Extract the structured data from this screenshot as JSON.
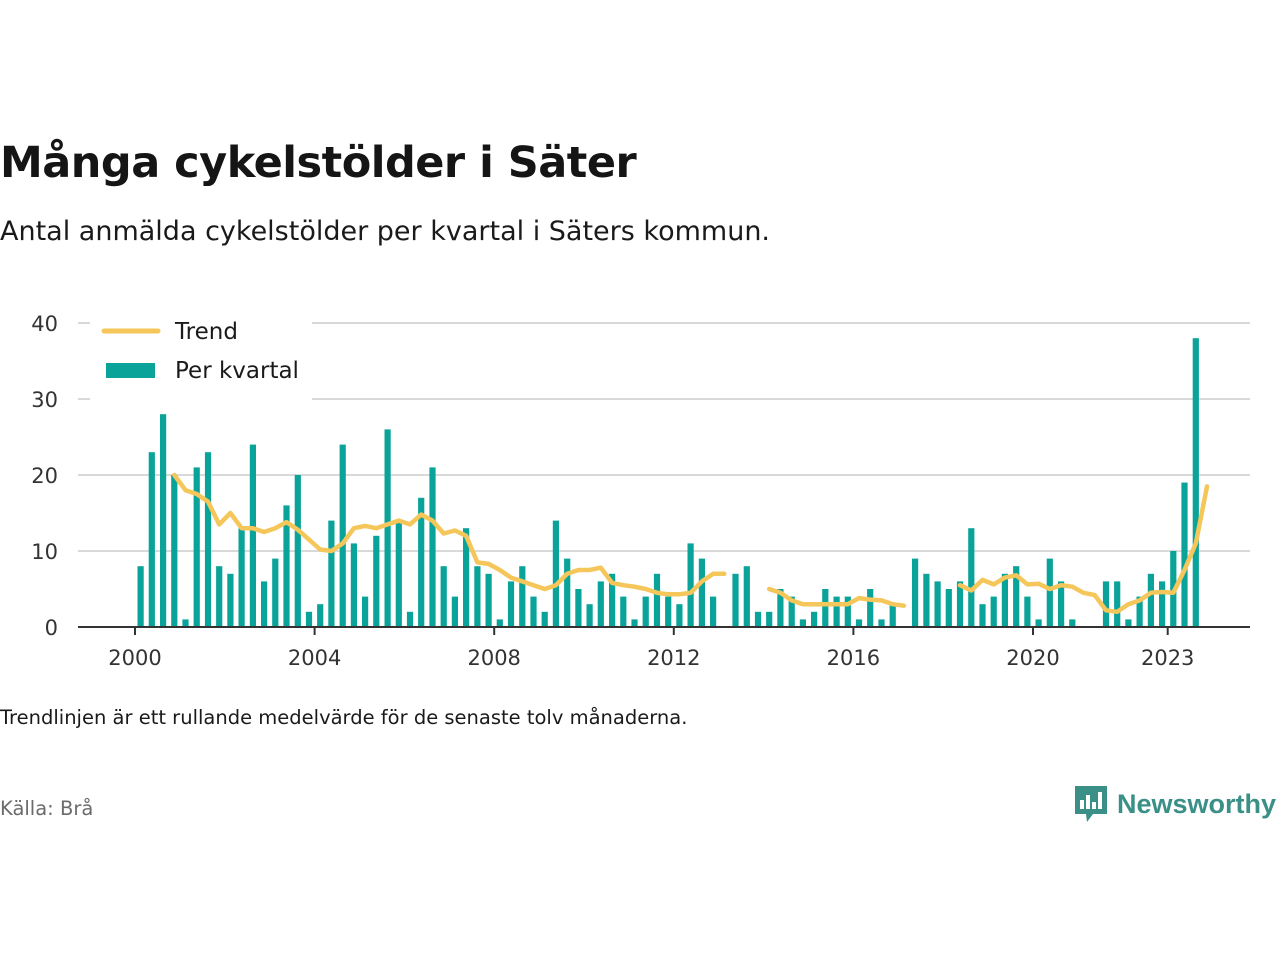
{
  "title": "Många cykelstölder i Säter",
  "subtitle": "Antal anmälda cykelstölder per kvartal i Säters kommun.",
  "note": "Trendlinjen är ett rullande medelvärde för de senaste tolv månaderna.",
  "source": "Källa: Brå",
  "brand": "Newsworthy",
  "colors": {
    "bar": "#0aa39a",
    "trend": "#f5c65a",
    "grid": "#d9d9d9",
    "axis": "#333333",
    "brand": "#3a8f86"
  },
  "chart_data": {
    "type": "bar",
    "title": "Många cykelstölder i Säter",
    "subtitle": "Antal anmälda cykelstölder per kvartal i Säters kommun.",
    "xlabel": "",
    "ylabel": "",
    "ylim": [
      0,
      40
    ],
    "yticks": [
      0,
      10,
      20,
      30,
      40
    ],
    "xticks": [
      2000,
      2004,
      2008,
      2012,
      2016,
      2020,
      2023
    ],
    "grid": true,
    "legend": {
      "position": "top-left",
      "entries": [
        "Trend",
        "Per kvartal"
      ]
    },
    "categories": [
      "2000 Q1",
      "2000 Q2",
      "2000 Q3",
      "2000 Q4",
      "2001 Q1",
      "2001 Q2",
      "2001 Q3",
      "2001 Q4",
      "2002 Q1",
      "2002 Q2",
      "2002 Q3",
      "2002 Q4",
      "2003 Q1",
      "2003 Q2",
      "2003 Q3",
      "2003 Q4",
      "2004 Q1",
      "2004 Q2",
      "2004 Q3",
      "2004 Q4",
      "2005 Q1",
      "2005 Q2",
      "2005 Q3",
      "2005 Q4",
      "2006 Q1",
      "2006 Q2",
      "2006 Q3",
      "2006 Q4",
      "2007 Q1",
      "2007 Q2",
      "2007 Q3",
      "2007 Q4",
      "2008 Q1",
      "2008 Q2",
      "2008 Q3",
      "2008 Q4",
      "2009 Q1",
      "2009 Q2",
      "2009 Q3",
      "2009 Q4",
      "2010 Q1",
      "2010 Q2",
      "2010 Q3",
      "2010 Q4",
      "2011 Q1",
      "2011 Q2",
      "2011 Q3",
      "2011 Q4",
      "2012 Q1",
      "2012 Q2",
      "2012 Q3",
      "2012 Q4",
      "2013 Q1",
      "2013 Q2",
      "2013 Q3",
      "2013 Q4",
      "2014 Q1",
      "2014 Q2",
      "2014 Q3",
      "2014 Q4",
      "2015 Q1",
      "2015 Q2",
      "2015 Q3",
      "2015 Q4",
      "2016 Q1",
      "2016 Q2",
      "2016 Q3",
      "2016 Q4",
      "2017 Q1",
      "2017 Q2",
      "2017 Q3",
      "2017 Q4",
      "2018 Q1",
      "2018 Q2",
      "2018 Q3",
      "2018 Q4",
      "2019 Q1",
      "2019 Q2",
      "2019 Q3",
      "2019 Q4",
      "2020 Q1",
      "2020 Q2",
      "2020 Q3",
      "2020 Q4",
      "2021 Q1",
      "2021 Q2",
      "2021 Q3",
      "2021 Q4",
      "2022 Q1",
      "2022 Q2",
      "2022 Q3",
      "2022 Q4",
      "2023 Q1",
      "2023 Q2",
      "2023 Q3",
      "2023 Q4"
    ],
    "series": [
      {
        "name": "Per kvartal",
        "kind": "bar",
        "values": [
          8,
          23,
          28,
          20,
          1,
          21,
          23,
          8,
          7,
          13,
          24,
          6,
          9,
          16,
          20,
          2,
          3,
          14,
          24,
          11,
          4,
          12,
          26,
          14,
          2,
          17,
          21,
          8,
          4,
          13,
          8,
          7,
          1,
          6,
          8,
          4,
          2,
          14,
          9,
          5,
          3,
          6,
          7,
          4,
          1,
          4,
          7,
          4,
          3,
          11,
          9,
          4,
          0,
          7,
          8,
          2,
          2,
          5,
          4,
          1,
          2,
          5,
          4,
          4,
          1,
          5,
          1,
          3,
          0,
          9,
          7,
          6,
          5,
          6,
          13,
          3,
          4,
          7,
          8,
          4,
          1,
          9,
          6,
          1,
          0,
          0,
          6,
          6,
          1,
          4,
          7,
          6,
          10,
          19,
          38,
          0
        ]
      },
      {
        "name": "Trend",
        "kind": "line",
        "values": [
          null,
          null,
          null,
          20,
          18,
          17.5,
          16.5,
          13.5,
          15,
          13,
          13,
          12.5,
          13,
          13.8,
          12.8,
          11.5,
          10.2,
          10,
          11,
          13,
          13.3,
          13,
          13.5,
          14,
          13.5,
          14.8,
          14,
          12.3,
          12.7,
          12,
          8.5,
          8.3,
          7.5,
          6.5,
          6,
          5.5,
          5,
          5.5,
          7,
          7.5,
          7.5,
          7.8,
          5.8,
          5.5,
          5.3,
          5,
          4.5,
          4.3,
          4.3,
          4.5,
          6,
          7,
          7,
          null,
          null,
          null,
          5,
          4.5,
          3.5,
          3,
          3,
          3,
          3,
          3,
          3.8,
          3.6,
          3.5,
          3,
          2.8,
          null,
          null,
          null,
          null,
          5.5,
          4.8,
          6.2,
          5.6,
          6.5,
          6.8,
          5.6,
          5.7,
          5,
          5.5,
          5.3,
          4.5,
          4.2,
          2.2,
          2,
          3,
          3.5,
          4.5,
          4.6,
          4.5,
          7.5,
          11,
          18.5
        ]
      }
    ]
  }
}
